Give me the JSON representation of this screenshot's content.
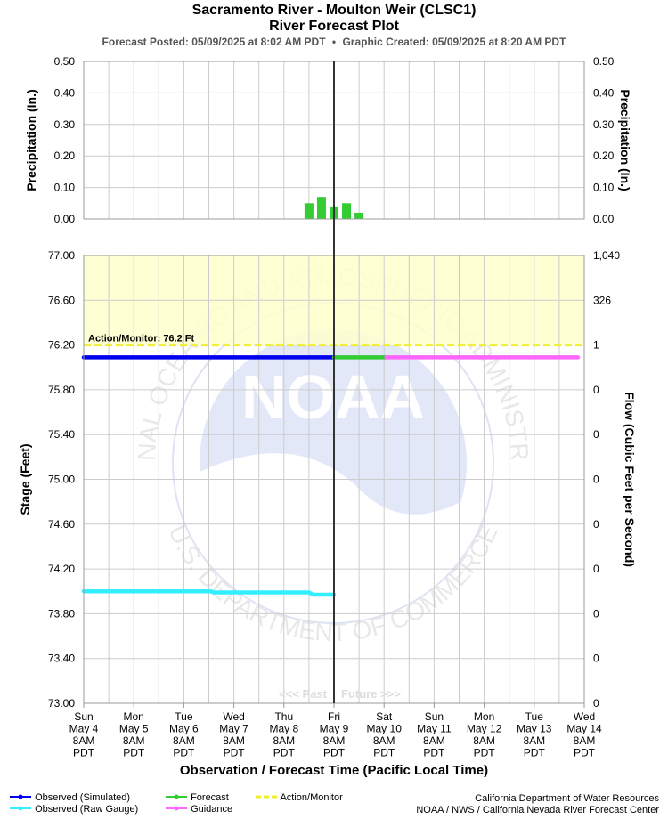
{
  "header": {
    "title": "Sacramento River - Moulton Weir (CLSC1)",
    "subtitle": "River Forecast Plot",
    "forecast_posted": "Forecast Posted: 05/09/2025 at 8:02 AM PDT",
    "separator": "•",
    "graphic_created": "Graphic Created: 05/09/2025 at 8:20 AM PDT"
  },
  "footer": {
    "credit_line1": "California Department of Water Resources",
    "credit_line2": "NOAA / NWS / California Nevada River Forecast Center"
  },
  "colors": {
    "observed_simulated": "#0000ee",
    "observed_raw": "#33eeff",
    "forecast": "#33cc33",
    "guidance": "#ff66ff",
    "action": "#eeee33",
    "action_band": "#ffffcc",
    "precip_bar": "#33cc33",
    "grid": "#cccccc",
    "now_line": "#333333"
  },
  "chart_data": [
    {
      "type": "bar",
      "panel": "precipitation",
      "ylabel_left": "Precipitation (In.)",
      "ylabel_right": "Precipitation (In.)",
      "ylim": [
        0,
        0.5
      ],
      "yticks": [
        "0.00",
        "0.10",
        "0.20",
        "0.30",
        "0.40",
        "0.50"
      ],
      "grid": true,
      "bars_x_hours": [
        108,
        114,
        120,
        126,
        132
      ],
      "bars_values": [
        0.05,
        0.07,
        0.04,
        0.05,
        0.02
      ]
    },
    {
      "type": "line",
      "panel": "stage",
      "ylabel_left": "Stage (Feet)",
      "ylabel_right": "Flow (Cubic Feet per Second)",
      "xlabel": "Observation / Forecast Time (Pacific Local Time)",
      "ylim": [
        73.0,
        77.0
      ],
      "yticks": [
        "73.00",
        "73.40",
        "73.80",
        "74.20",
        "74.60",
        "75.00",
        "75.40",
        "75.80",
        "76.20",
        "76.60",
        "77.00"
      ],
      "right_ticks": [
        "0",
        "0",
        "0",
        "0",
        "0",
        "0",
        "0",
        "0",
        "1",
        "326",
        "1,040"
      ],
      "xlim_hours": [
        0,
        240
      ],
      "x_categories": [
        [
          "Sun",
          "May 4",
          "8AM",
          "PDT"
        ],
        [
          "Mon",
          "May 5",
          "8AM",
          "PDT"
        ],
        [
          "Tue",
          "May 6",
          "8AM",
          "PDT"
        ],
        [
          "Wed",
          "May 7",
          "8AM",
          "PDT"
        ],
        [
          "Thu",
          "May 8",
          "8AM",
          "PDT"
        ],
        [
          "Fri",
          "May 9",
          "8AM",
          "PDT"
        ],
        [
          "Sat",
          "May 10",
          "8AM",
          "PDT"
        ],
        [
          "Sun",
          "May 11",
          "8AM",
          "PDT"
        ],
        [
          "Mon",
          "May 12",
          "8AM",
          "PDT"
        ],
        [
          "Tue",
          "May 13",
          "8AM",
          "PDT"
        ],
        [
          "Wed",
          "May 14",
          "8AM",
          "PDT"
        ]
      ],
      "grid": true,
      "now_hours": 120,
      "action_stage": 76.2,
      "action_label": "Action/Monitor: 76.2 Ft",
      "past_label": "<<< Past",
      "future_label": "Future >>>",
      "series": [
        {
          "name": "Observed (Simulated)",
          "x": [
            0,
            120
          ],
          "values": [
            76.09,
            76.09
          ]
        },
        {
          "name": "Observed (Raw Gauge)",
          "x": [
            0,
            61,
            62,
            108,
            110,
            120
          ],
          "values": [
            74.0,
            74.0,
            73.99,
            73.99,
            73.97,
            73.97
          ]
        },
        {
          "name": "Forecast",
          "x": [
            120,
            145
          ],
          "values": [
            76.09,
            76.09
          ]
        },
        {
          "name": "Guidance",
          "x": [
            145,
            237
          ],
          "values": [
            76.09,
            76.09
          ]
        }
      ],
      "legend": [
        {
          "label": "Observed (Simulated)",
          "color": "#0000ee",
          "style": "line-dot"
        },
        {
          "label": "Observed (Raw Gauge)",
          "color": "#33eeff",
          "style": "line-dot"
        },
        {
          "label": "Forecast",
          "color": "#33cc33",
          "style": "line-dot"
        },
        {
          "label": "Guidance",
          "color": "#ff66ff",
          "style": "line-dot"
        },
        {
          "label": "Action/Monitor",
          "color": "#eeee33",
          "style": "dash"
        }
      ]
    }
  ],
  "watermark": {
    "logo_text": "NOAA",
    "ring_top": "NATIONAL OCEANIC AND ATMOSPHERIC ADMINISTRATION",
    "ring_bottom": "U.S. DEPARTMENT OF COMMERCE"
  }
}
